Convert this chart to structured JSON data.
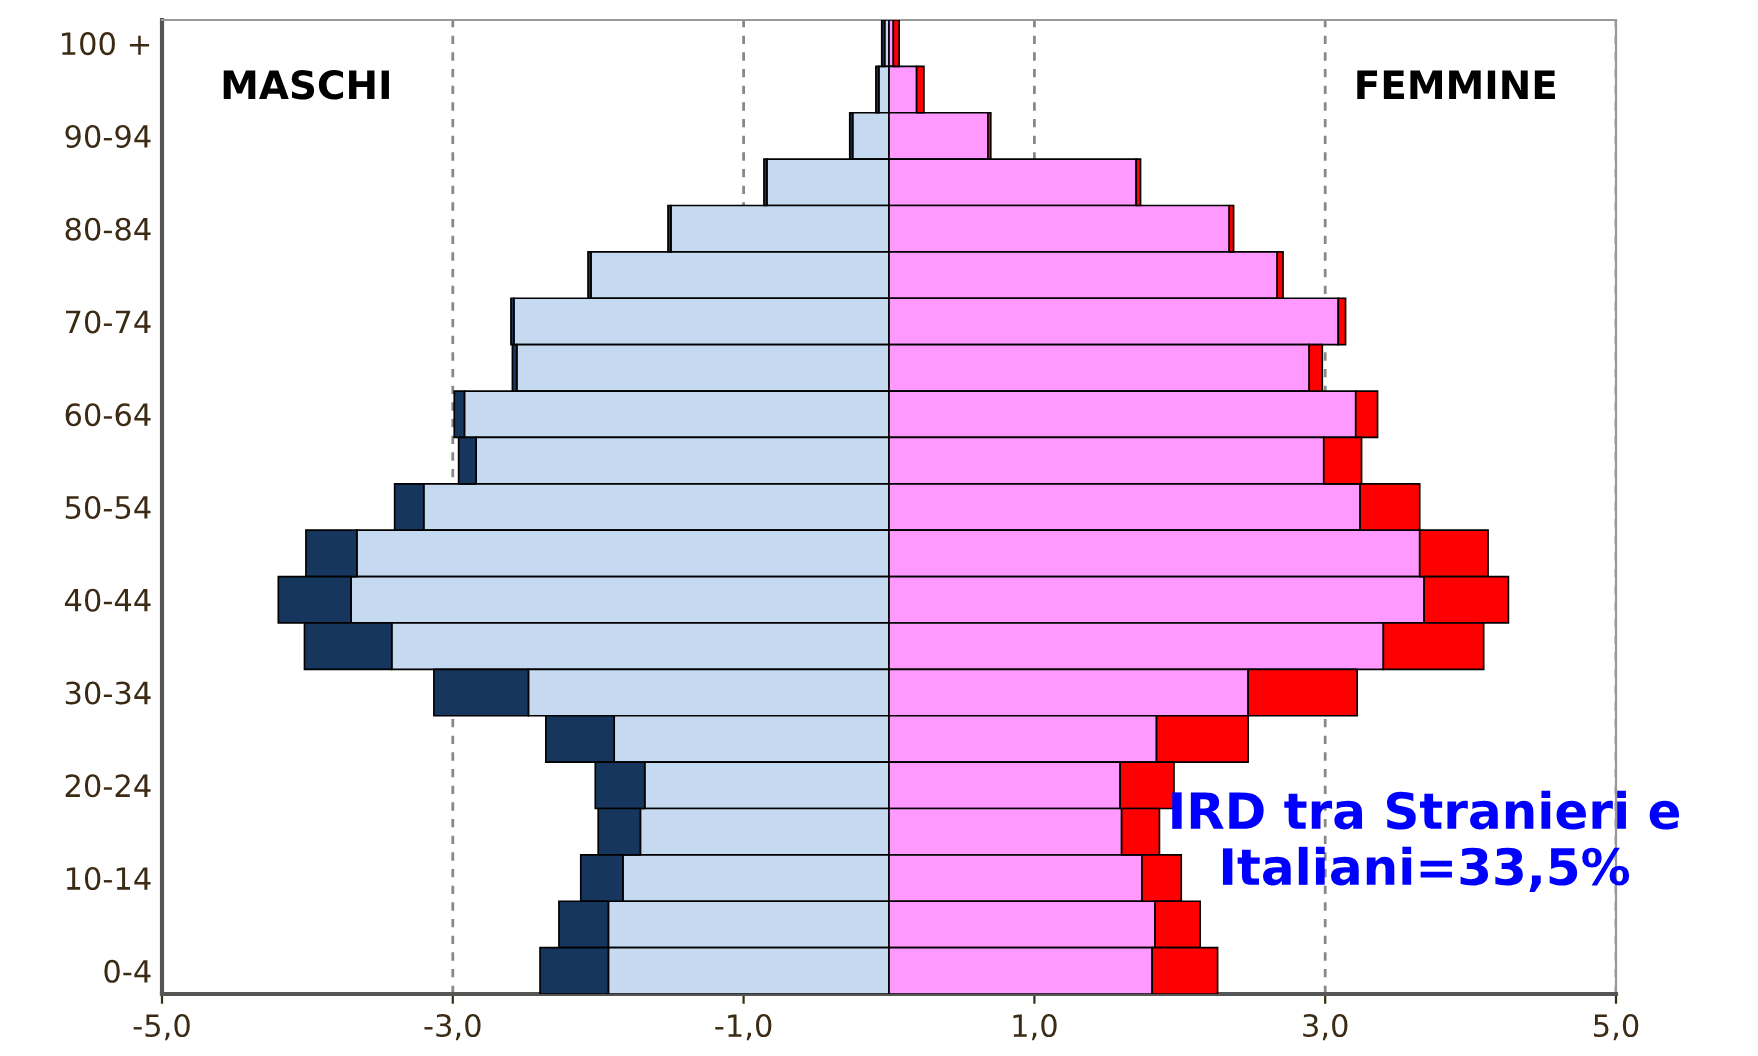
{
  "chart_data": {
    "type": "bar",
    "orientation": "horizontal",
    "stacked": true,
    "categories": [
      "100 +",
      null,
      "90-94",
      null,
      "80-84",
      null,
      "70-74",
      null,
      "60-64",
      null,
      "50-54",
      null,
      "40-44",
      null,
      "30-34",
      null,
      "20-24",
      null,
      "10-14",
      null,
      "0-4"
    ],
    "series": [
      {
        "color": "#c5d9f1",
        "values": [
          -0.03,
          -0.07,
          -0.25,
          -0.84,
          -1.5,
          -2.05,
          -2.58,
          -2.56,
          -2.92,
          -2.84,
          -3.2,
          -3.66,
          -3.7,
          -3.42,
          -2.48,
          -1.89,
          -1.68,
          -1.71,
          -1.83,
          -1.93,
          -1.93
        ]
      },
      {
        "color": "#17365d",
        "values": [
          -0.02,
          -0.02,
          -0.02,
          -0.02,
          -0.02,
          -0.02,
          -0.02,
          -0.03,
          -0.07,
          -0.12,
          -0.2,
          -0.35,
          -0.5,
          -0.6,
          -0.65,
          -0.47,
          -0.34,
          -0.29,
          -0.29,
          -0.34,
          -0.47
        ]
      },
      {
        "color": "#ff99ff",
        "values": [
          0.03,
          0.19,
          0.68,
          1.7,
          2.34,
          2.67,
          3.09,
          2.89,
          3.21,
          2.99,
          3.24,
          3.65,
          3.68,
          3.4,
          2.47,
          1.84,
          1.59,
          1.6,
          1.74,
          1.83,
          1.81
        ]
      },
      {
        "color": "#ff0000",
        "values": [
          0.04,
          0.05,
          0.02,
          0.03,
          0.03,
          0.04,
          0.05,
          0.09,
          0.15,
          0.26,
          0.41,
          0.47,
          0.58,
          0.69,
          0.75,
          0.63,
          0.37,
          0.26,
          0.27,
          0.31,
          0.45
        ]
      }
    ],
    "xlim": [
      -5,
      5
    ],
    "xticks": [
      {
        "value": -5,
        "label": "-5,0"
      },
      {
        "value": -3,
        "label": "-3,0"
      },
      {
        "value": -1,
        "label": "-1,0"
      },
      {
        "value": 1,
        "label": "1,0"
      },
      {
        "value": 3,
        "label": "3,0"
      },
      {
        "value": 5,
        "label": "5,0"
      }
    ],
    "grid": "x",
    "annotations": [
      "MASCHI",
      "FEMMINE",
      "IRD tra Stranieri e\nItaliani=33,5%"
    ]
  }
}
